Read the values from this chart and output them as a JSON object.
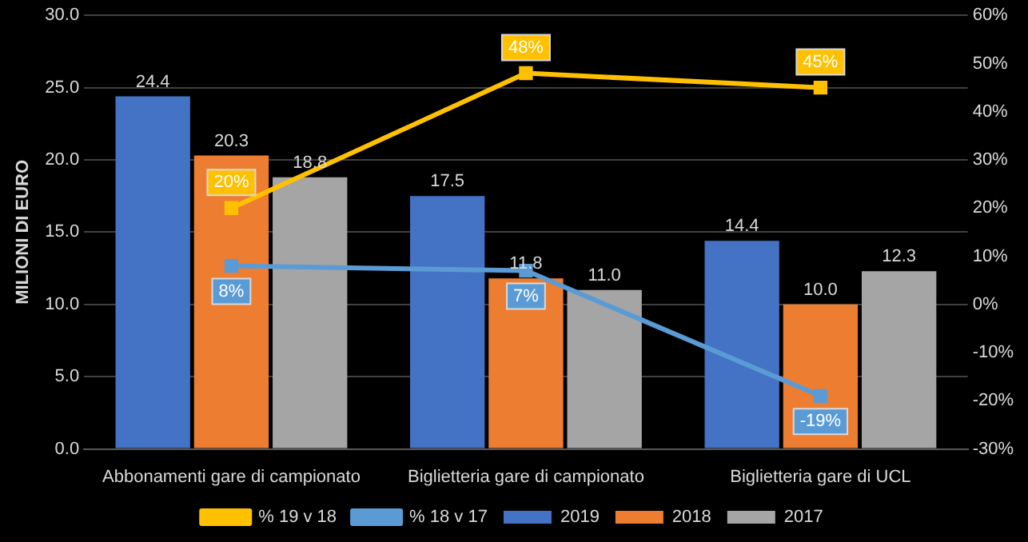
{
  "chart_data": {
    "type": "bar",
    "ylabel": "MILIONI DI EURO",
    "categories": [
      "Abbonamenti gare di campionato",
      "Biglietteria gare di campionato",
      "Biglietteria gare di UCL"
    ],
    "series": [
      {
        "name": "2019",
        "color": "#4472c4",
        "values": [
          24.4,
          17.5,
          14.4
        ],
        "value_labels": [
          "24.4",
          "17.5",
          "14.4"
        ]
      },
      {
        "name": "2018",
        "color": "#ed7d31",
        "values": [
          20.3,
          11.8,
          10.0
        ],
        "value_labels": [
          "20.3",
          "11.8",
          "10.0"
        ]
      },
      {
        "name": "2017",
        "color": "#a5a5a5",
        "values": [
          18.8,
          11.0,
          12.3
        ],
        "value_labels": [
          "18.8",
          "11.0",
          "12.3"
        ]
      },
      {
        "name": "% 19 v 18",
        "type": "line",
        "axis": "y2",
        "color": "#ffc000",
        "values": [
          20,
          48,
          45
        ],
        "value_labels": [
          "20%",
          "48%",
          "45%"
        ]
      },
      {
        "name": "% 18 v 17",
        "type": "line",
        "axis": "y2",
        "color": "#5b9bd5",
        "values": [
          8,
          7,
          -19
        ],
        "value_labels": [
          "8%",
          "7%",
          "-19%"
        ]
      }
    ],
    "ylim": [
      0,
      30
    ],
    "yticks": [
      {
        "value": 0,
        "label": "0.0"
      },
      {
        "value": 5,
        "label": "5.0"
      },
      {
        "value": 10,
        "label": "10.0"
      },
      {
        "value": 15,
        "label": "15.0"
      },
      {
        "value": 20,
        "label": "20.0"
      },
      {
        "value": 25,
        "label": "25.0"
      },
      {
        "value": 30,
        "label": "30.0"
      }
    ],
    "y2lim": [
      -30,
      60
    ],
    "y2ticks": [
      {
        "value": -30,
        "label": "-30%"
      },
      {
        "value": -20,
        "label": "-20%"
      },
      {
        "value": -10,
        "label": "-10%"
      },
      {
        "value": 0,
        "label": "0%"
      },
      {
        "value": 10,
        "label": "10%"
      },
      {
        "value": 20,
        "label": "20%"
      },
      {
        "value": 30,
        "label": "30%"
      },
      {
        "value": 40,
        "label": "40%"
      },
      {
        "value": 50,
        "label": "50%"
      },
      {
        "value": 60,
        "label": "60%"
      }
    ],
    "grid": "y",
    "legend": "bottom",
    "marker": "square",
    "line_style": "solid"
  }
}
